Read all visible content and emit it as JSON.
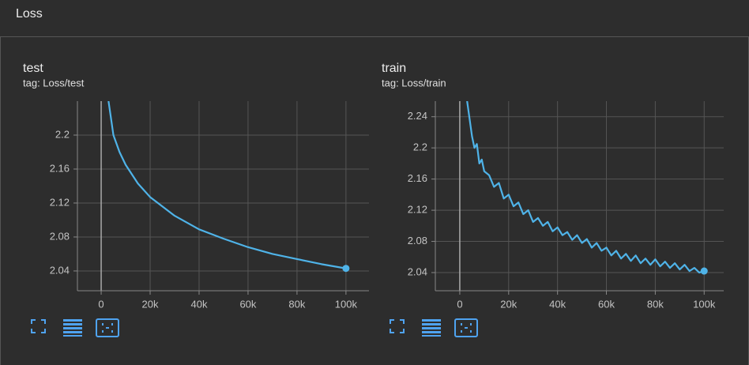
{
  "header": {
    "title": "Loss"
  },
  "chart_data": [
    {
      "type": "line",
      "title": "test",
      "subtitle": "tag: Loss/test",
      "color": "#4fb3e8",
      "grid": true,
      "x": [
        3000,
        5000,
        7500,
        10000,
        15000,
        20000,
        30000,
        40000,
        50000,
        60000,
        70000,
        80000,
        90000,
        100000
      ],
      "values": [
        2.24,
        2.2,
        2.18,
        2.165,
        2.143,
        2.127,
        2.105,
        2.089,
        2.078,
        2.068,
        2.06,
        2.054,
        2.048,
        2.043
      ],
      "xlim": [
        -9700,
        109400
      ],
      "ylim": [
        2.0167,
        2.24
      ],
      "xticks": [
        0,
        {
          "value": 20000,
          "label": "20k"
        },
        {
          "value": 40000,
          "label": "40k"
        },
        {
          "value": 60000,
          "label": "60k"
        },
        {
          "value": 80000,
          "label": "80k"
        },
        {
          "value": 100000,
          "label": "100k"
        }
      ],
      "yticks": [
        2.04,
        2.08,
        2.12,
        2.16,
        2.2
      ]
    },
    {
      "type": "line",
      "title": "train",
      "subtitle": "tag: Loss/train",
      "color": "#4fb3e8",
      "grid": true,
      "x": [
        3000,
        5000,
        6000,
        7000,
        8000,
        9000,
        10000,
        12000,
        14000,
        16000,
        18000,
        20000,
        22000,
        24000,
        26000,
        28000,
        30000,
        32000,
        34000,
        36000,
        38000,
        40000,
        42000,
        44000,
        46000,
        48000,
        50000,
        52000,
        54000,
        56000,
        58000,
        60000,
        62000,
        64000,
        66000,
        68000,
        70000,
        72000,
        74000,
        76000,
        78000,
        80000,
        82000,
        84000,
        86000,
        88000,
        90000,
        92000,
        94000,
        96000,
        98000,
        100000
      ],
      "values": [
        2.26,
        2.215,
        2.2,
        2.205,
        2.18,
        2.185,
        2.17,
        2.165,
        2.15,
        2.155,
        2.135,
        2.14,
        2.125,
        2.13,
        2.115,
        2.12,
        2.105,
        2.11,
        2.1,
        2.105,
        2.093,
        2.098,
        2.088,
        2.092,
        2.082,
        2.088,
        2.078,
        2.083,
        2.072,
        2.078,
        2.068,
        2.072,
        2.062,
        2.068,
        2.058,
        2.064,
        2.055,
        2.062,
        2.052,
        2.058,
        2.05,
        2.057,
        2.048,
        2.054,
        2.046,
        2.052,
        2.044,
        2.05,
        2.042,
        2.046,
        2.04,
        2.042
      ],
      "xlim": [
        -10000,
        108000
      ],
      "ylim": [
        2.0167,
        2.26
      ],
      "xticks": [
        0,
        {
          "value": 20000,
          "label": "20k"
        },
        {
          "value": 40000,
          "label": "40k"
        },
        {
          "value": 60000,
          "label": "60k"
        },
        {
          "value": 80000,
          "label": "80k"
        },
        {
          "value": 100000,
          "label": "100k"
        }
      ],
      "yticks": [
        2.04,
        2.08,
        2.12,
        2.16,
        2.2,
        2.24
      ]
    }
  ]
}
